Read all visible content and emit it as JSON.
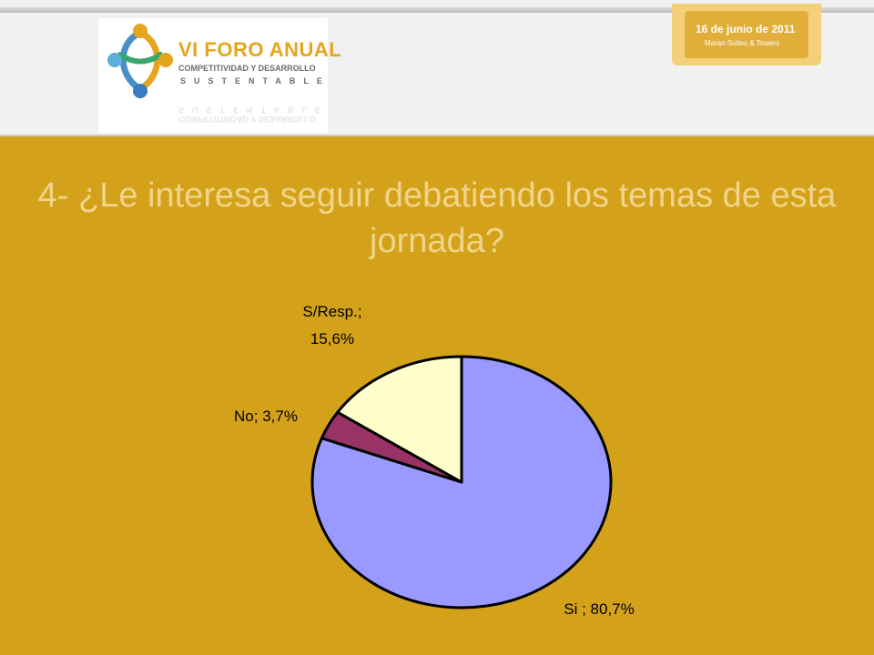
{
  "header": {
    "logo": {
      "title": "VI FORO ANUAL",
      "subtitle1": "COMPETITIVIDAD Y DESARROLLO",
      "subtitle2": "SUSTENTABLE"
    },
    "date_badge": {
      "line1": "16 de junio de 2011",
      "line2": "Maran Suites & Towers"
    }
  },
  "slide": {
    "title": "4- ¿Le interesa seguir debatiendo los temas de esta jornada?"
  },
  "chart_data": {
    "type": "pie",
    "slices": [
      {
        "label": "Si ; 80,7%",
        "value": 80.7,
        "color": "#9999FF"
      },
      {
        "label": "No; 3,7%",
        "value": 3.7,
        "color": "#993366"
      },
      {
        "label": "S/Resp.; 15,6%",
        "value": 15.6,
        "color": "#FFFFCC"
      }
    ],
    "start": "12 o'clock",
    "direction": "clockwise",
    "outline_color": "#000000"
  }
}
